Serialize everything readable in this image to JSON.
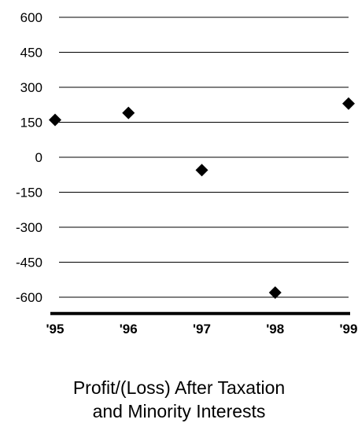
{
  "chart_data": {
    "type": "scatter",
    "title_lines": [
      "Profit/(Loss) After Taxation",
      "and Minority Interests"
    ],
    "x": [
      "'95",
      "'96",
      "'97",
      "'98",
      "'99"
    ],
    "y": [
      160,
      190,
      -55,
      -580,
      230
    ],
    "y_ticks": [
      "600",
      "450",
      "300",
      "150",
      "0",
      "-150",
      "-300",
      "-450",
      "-600"
    ],
    "y_tick_values": [
      600,
      450,
      300,
      150,
      0,
      -150,
      -300,
      -450,
      -600
    ],
    "ylim": [
      -660,
      600
    ],
    "grid": true,
    "legend": "none",
    "marker": "diamond",
    "marker_color": "#000000"
  }
}
